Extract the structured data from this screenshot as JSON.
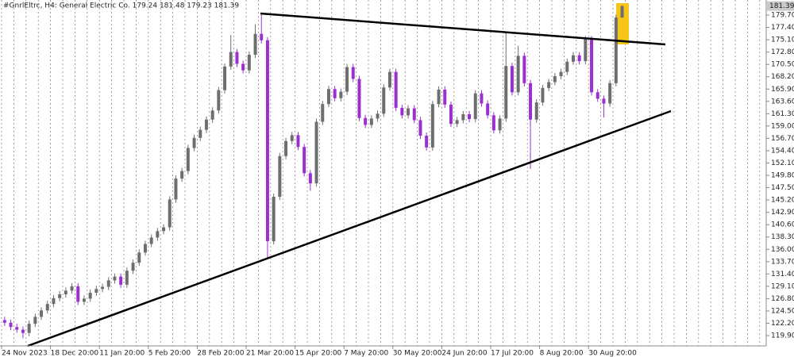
{
  "chart_data": {
    "type": "candlestick",
    "title": "#GnrlEltrc, H4:  General Electric Co.  179.24 181.48 179.23 181.39",
    "up_color": "#6e6e6e",
    "down_color": "#9b30d0",
    "categories": [
      "24 Nov 2023",
      null,
      null,
      null,
      null,
      null,
      null,
      null,
      "18 Dec 20:00",
      null,
      null,
      null,
      null,
      null,
      null,
      null,
      "11 Jan 20:00",
      null,
      null,
      null,
      null,
      null,
      null,
      null,
      "5 Feb 20:00",
      null,
      null,
      null,
      null,
      null,
      null,
      null,
      "28 Feb 20:00",
      null,
      null,
      null,
      null,
      null,
      null,
      null,
      "21 Mar 20:00",
      null,
      null,
      null,
      null,
      null,
      null,
      null,
      "15 Apr 20:00",
      null,
      null,
      null,
      null,
      null,
      null,
      null,
      "7 May 20:00",
      null,
      null,
      null,
      null,
      null,
      null,
      null,
      "30 May 20:00",
      null,
      null,
      null,
      null,
      null,
      null,
      null,
      "24 Jun 20:00",
      null,
      null,
      null,
      null,
      null,
      null,
      null,
      "17 Jul 20:00",
      null,
      null,
      null,
      null,
      null,
      null,
      null,
      "8 Aug 20:00",
      null,
      null,
      null,
      null,
      null,
      null,
      null,
      "30 Aug 20:00",
      null,
      null,
      null,
      null,
      null
    ],
    "open": [
      122.8,
      122.3,
      121.5,
      121.0,
      120.4,
      122.1,
      123.4,
      124.6,
      125.8,
      126.9,
      127.6,
      128.3,
      129.1,
      126.2,
      126.8,
      127.9,
      128.6,
      129.0,
      130.2,
      130.9,
      129.4,
      132.0,
      133.5,
      135.4,
      137.0,
      138.2,
      139.4,
      140.1,
      145.3,
      149.2,
      150.6,
      154.9,
      156.8,
      158.3,
      160.2,
      161.9,
      165.7,
      170.1,
      172.8,
      170.6,
      169.4,
      172.3,
      176.2,
      175.0,
      137.5,
      145.8,
      153.4,
      156.2,
      157.3,
      155.1,
      150.2,
      148.3,
      159.8,
      163.1,
      165.9,
      164.2,
      165.4,
      170.0,
      167.8,
      160.5,
      159.2,
      160.4,
      161.3,
      166.2,
      169.1,
      162.4,
      161.0,
      162.3,
      160.1,
      157.2,
      155.0,
      163.1,
      165.8,
      163.0,
      159.4,
      160.1,
      161.2,
      160.3,
      165.1,
      163.2,
      161.0,
      158.2,
      160.4,
      170.2,
      165.3,
      172.1,
      167.0,
      160.2,
      163.4,
      166.1,
      167.2,
      168.3,
      169.1,
      171.0,
      172.2,
      171.1,
      175.2,
      165.3,
      164.1,
      163.2,
      167.0,
      179.24
    ],
    "high": [
      123.4,
      122.9,
      122.1,
      121.6,
      122.7,
      124.0,
      125.2,
      126.4,
      127.5,
      128.2,
      128.9,
      129.7,
      129.7,
      127.4,
      128.5,
      129.2,
      129.6,
      130.8,
      131.5,
      131.5,
      132.6,
      134.1,
      136.0,
      137.6,
      138.8,
      140.0,
      140.7,
      145.9,
      149.8,
      151.2,
      155.5,
      157.4,
      158.9,
      160.8,
      162.5,
      166.3,
      170.7,
      176.0,
      173.4,
      171.2,
      172.9,
      178.0,
      179.8,
      175.6,
      146.4,
      154.0,
      156.8,
      157.9,
      157.9,
      155.7,
      150.8,
      160.4,
      163.7,
      166.5,
      166.5,
      166.0,
      170.6,
      170.6,
      168.4,
      161.1,
      161.0,
      161.9,
      166.8,
      169.7,
      169.7,
      163.0,
      162.9,
      162.9,
      160.7,
      157.8,
      163.7,
      166.4,
      166.4,
      163.6,
      160.7,
      161.8,
      161.8,
      165.7,
      165.7,
      163.8,
      161.6,
      161.0,
      176.5,
      170.8,
      174.0,
      172.7,
      167.6,
      164.0,
      166.7,
      167.8,
      168.9,
      169.7,
      171.6,
      172.8,
      172.8,
      175.8,
      175.8,
      165.9,
      164.7,
      167.6,
      179.8,
      181.48
    ],
    "low": [
      121.7,
      120.9,
      120.4,
      119.4,
      119.8,
      121.5,
      122.8,
      124.0,
      125.2,
      126.3,
      127.0,
      127.7,
      125.6,
      125.6,
      126.2,
      127.3,
      128.0,
      128.4,
      129.6,
      128.8,
      128.8,
      131.4,
      132.9,
      134.8,
      136.4,
      137.6,
      138.8,
      139.5,
      144.7,
      148.6,
      150.0,
      154.3,
      156.2,
      157.7,
      159.6,
      161.3,
      165.1,
      169.5,
      170.0,
      168.8,
      168.8,
      171.7,
      174.4,
      134.3,
      136.9,
      145.2,
      152.8,
      155.6,
      154.5,
      149.6,
      146.9,
      147.7,
      159.2,
      162.5,
      163.6,
      163.6,
      164.8,
      167.2,
      159.9,
      158.6,
      158.6,
      159.8,
      160.7,
      165.6,
      161.8,
      160.4,
      160.4,
      159.5,
      156.6,
      154.4,
      154.4,
      162.5,
      162.4,
      158.8,
      158.8,
      159.5,
      159.7,
      159.7,
      162.6,
      160.4,
      157.6,
      157.6,
      159.8,
      164.7,
      164.7,
      166.4,
      151.0,
      159.6,
      162.8,
      165.5,
      166.6,
      167.7,
      168.5,
      170.4,
      170.5,
      170.5,
      164.7,
      163.5,
      160.6,
      162.6,
      166.4,
      179.23
    ],
    "close": [
      122.3,
      121.5,
      121.0,
      120.4,
      122.1,
      123.4,
      124.6,
      125.8,
      126.9,
      127.6,
      128.3,
      129.1,
      126.2,
      126.8,
      127.9,
      128.6,
      129.0,
      130.2,
      130.9,
      129.4,
      132.0,
      133.5,
      135.4,
      137.0,
      138.2,
      139.4,
      140.1,
      145.3,
      149.2,
      150.6,
      154.9,
      156.8,
      158.3,
      160.2,
      161.9,
      165.7,
      170.1,
      172.8,
      170.6,
      169.4,
      172.3,
      176.2,
      175.0,
      137.5,
      145.8,
      153.4,
      156.2,
      157.3,
      155.1,
      150.2,
      148.3,
      159.8,
      163.1,
      165.9,
      164.2,
      165.4,
      170.0,
      167.8,
      160.5,
      159.2,
      160.4,
      161.3,
      166.2,
      169.1,
      162.4,
      161.0,
      162.3,
      160.1,
      157.2,
      155.0,
      163.1,
      165.8,
      163.0,
      159.4,
      160.1,
      161.2,
      160.3,
      165.1,
      163.2,
      161.0,
      158.2,
      160.4,
      170.2,
      165.3,
      172.1,
      167.0,
      160.2,
      163.4,
      166.1,
      167.2,
      168.3,
      169.1,
      171.0,
      172.2,
      171.1,
      175.2,
      165.3,
      164.1,
      163.2,
      167.0,
      179.24,
      181.39
    ],
    "ylim": [
      117.98,
      182.22
    ],
    "yticks": [
      {
        "value": 119.9,
        "label": "119.90"
      },
      {
        "value": 122.2,
        "label": "122.20"
      },
      {
        "value": 124.5,
        "label": "124.50"
      },
      {
        "value": 126.8,
        "label": "126.80"
      },
      {
        "value": 129.1,
        "label": "129.10"
      },
      {
        "value": 131.4,
        "label": "131.40"
      },
      {
        "value": 133.7,
        "label": "133.70"
      },
      {
        "value": 136,
        "label": "136.00"
      },
      {
        "value": 138.3,
        "label": "138.30"
      },
      {
        "value": 140.6,
        "label": "140.60"
      },
      {
        "value": 142.9,
        "label": "142.90"
      },
      {
        "value": 145.2,
        "label": "145.20"
      },
      {
        "value": 147.5,
        "label": "147.50"
      },
      {
        "value": 149.8,
        "label": "149.80"
      },
      {
        "value": 152.1,
        "label": "152.10"
      },
      {
        "value": 154.4,
        "label": "154.40"
      },
      {
        "value": 156.7,
        "label": "156.70"
      },
      {
        "value": 159,
        "label": "159.00"
      },
      {
        "value": 161.3,
        "label": "161.30"
      },
      {
        "value": 163.6,
        "label": "163.60"
      },
      {
        "value": 165.9,
        "label": "165.90"
      },
      {
        "value": 168.2,
        "label": "168.20"
      },
      {
        "value": 170.5,
        "label": "170.50"
      },
      {
        "value": 172.8,
        "label": "172.80"
      },
      {
        "value": 175.1,
        "label": "175.10"
      },
      {
        "value": 177.4,
        "label": "177.40"
      },
      {
        "value": 179.7,
        "label": "179.70"
      }
    ]
  }
}
